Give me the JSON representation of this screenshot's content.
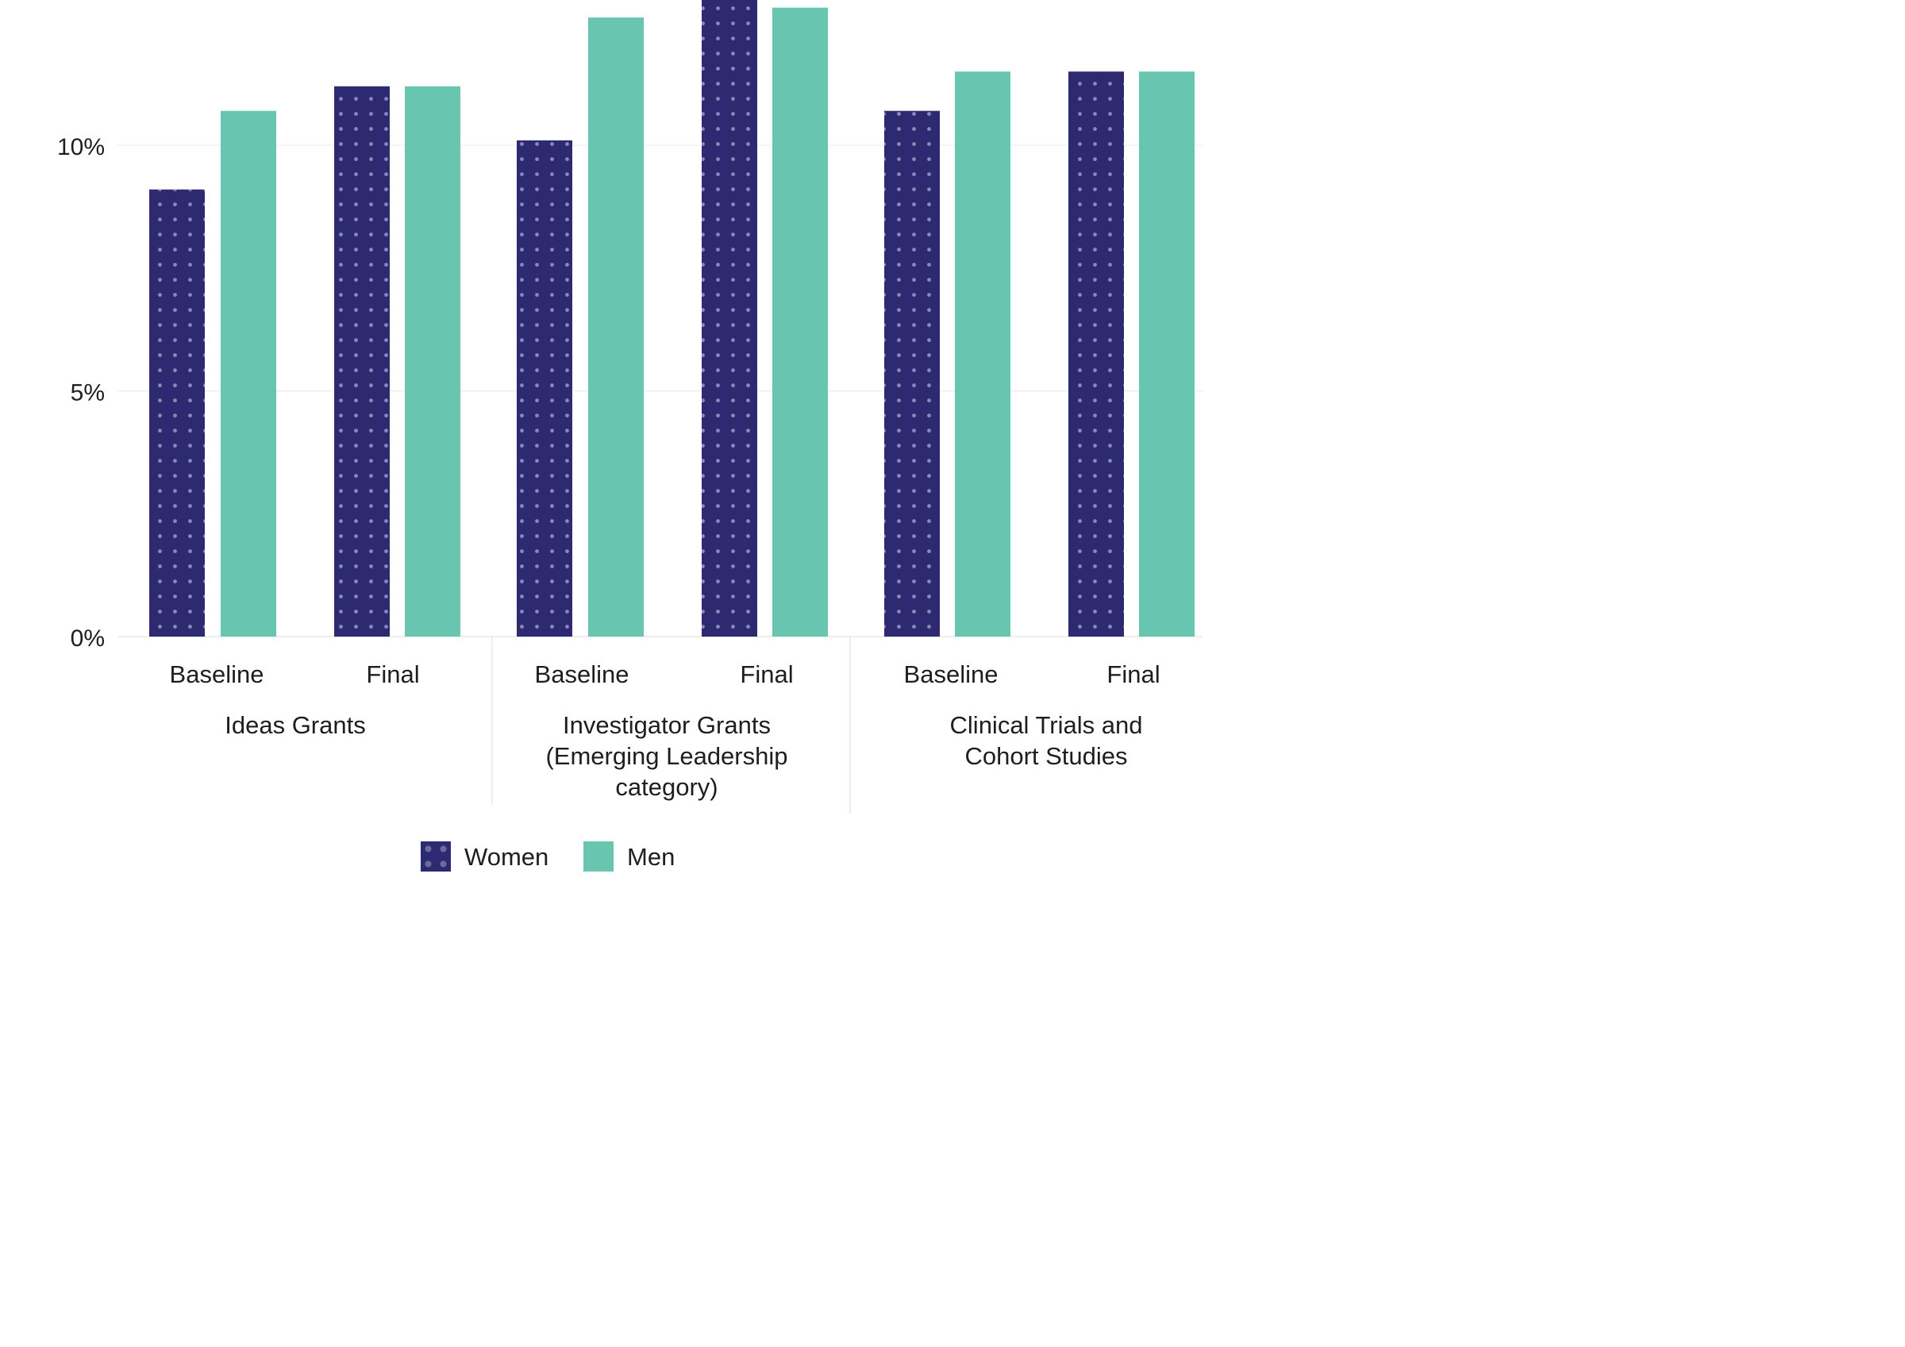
{
  "chart_data": {
    "type": "bar",
    "title": "",
    "xlabel": "",
    "ylabel": "",
    "ylim": [
      0,
      13
    ],
    "y_ticks": [
      {
        "value": 0,
        "label": "0%"
      },
      {
        "value": 5,
        "label": "5%"
      },
      {
        "value": 10,
        "label": "10%"
      }
    ],
    "grid": "horizontal",
    "legend_position": "bottom-center",
    "groups": [
      {
        "label_lines": [
          "Ideas Grants"
        ],
        "categories": [
          "Baseline",
          "Final"
        ]
      },
      {
        "label_lines": [
          "Investigator Grants",
          "(Emerging Leadership",
          "category)"
        ],
        "categories": [
          "Baseline",
          "Final"
        ]
      },
      {
        "label_lines": [
          "Clinical Trials and",
          "Cohort Studies"
        ],
        "categories": [
          "Baseline",
          "Final"
        ]
      }
    ],
    "categories": [
      "Ideas Grants Baseline",
      "Ideas Grants Final",
      "Investigator Grants Baseline",
      "Investigator Grants Final",
      "Clinical Trials and Cohort Studies Baseline",
      "Clinical Trials and Cohort Studies Final"
    ],
    "series": [
      {
        "name": "Women",
        "color": "#2e2a72",
        "pattern": "dots",
        "values": [
          9.1,
          11.2,
          10.1,
          13.0,
          10.7,
          11.5
        ]
      },
      {
        "name": "Men",
        "color": "#68c6b0",
        "values": [
          10.7,
          11.2,
          12.6,
          12.8,
          11.5,
          11.5
        ]
      }
    ]
  }
}
